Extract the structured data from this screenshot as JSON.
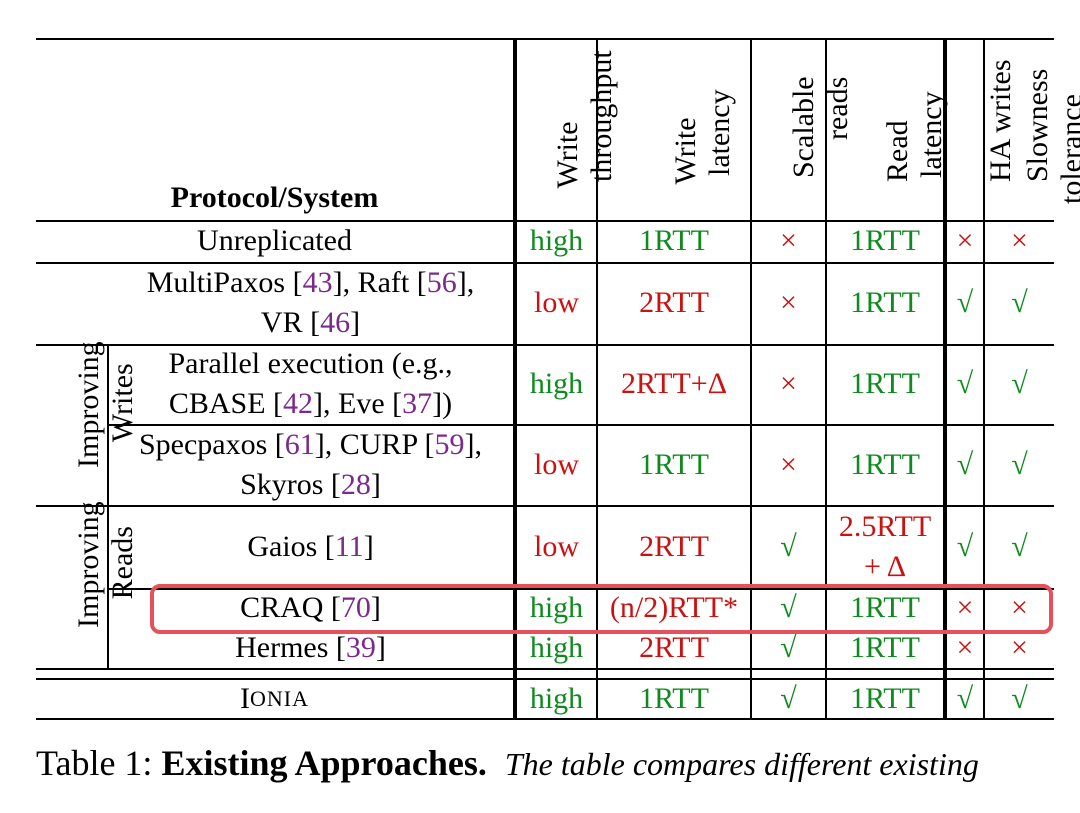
{
  "columns": {
    "protocol": "Protocol/System",
    "write_throughput": [
      "Write",
      "throughput"
    ],
    "write_latency": [
      "Write",
      "latency"
    ],
    "scalable_reads": [
      "Scalable",
      "reads"
    ],
    "read_latency": [
      "Read",
      "latency"
    ],
    "ha_writes": "HA writes",
    "slowness_tolerance": [
      "Slowness",
      "tolerance"
    ]
  },
  "groups": {
    "improving_writes": [
      "Improving",
      "Writes"
    ],
    "improving_reads": [
      "Improving",
      "Reads"
    ]
  },
  "marks": {
    "yes": "√",
    "no": "×"
  },
  "rows": {
    "unreplicated": {
      "name": "Unreplicated",
      "wt": "high",
      "wl": "1RTT",
      "rl": "1RTT"
    },
    "multipaxos": {
      "name1": "MultiPaxos [",
      "cite1": "43",
      "name2": "], Raft [",
      "cite2": "56",
      "name3": "],",
      "name4": "VR [",
      "cite3": "46",
      "name5": "]",
      "wt": "low",
      "wl": "2RTT",
      "rl": "1RTT"
    },
    "parallel": {
      "name1": "Parallel execution (e.g.,",
      "name2": "CBASE [",
      "cite1": "42",
      "name3": "], Eve [",
      "cite2": "37",
      "name4": "])",
      "wt": "high",
      "wl": "2RTT+Δ",
      "rl": "1RTT"
    },
    "specpaxos": {
      "name1": "Specpaxos [",
      "cite1": "61",
      "name2": "], CURP [",
      "cite2": "59",
      "name3": "],",
      "name4": "Skyros [",
      "cite3": "28",
      "name5": "]",
      "wt": "low",
      "wl": "1RTT",
      "rl": "1RTT"
    },
    "gaios": {
      "name1": "Gaios [",
      "cite1": "11",
      "name2": "]",
      "wt": "low",
      "wl": "2RTT",
      "rl1": "2.5RTT",
      "rl2": "+ Δ"
    },
    "craq": {
      "name1": "CRAQ [",
      "cite1": "70",
      "name2": "]",
      "wt": "high",
      "wl": "(n/2)RTT*",
      "rl": "1RTT"
    },
    "hermes": {
      "name1": "Hermes [",
      "cite1": "39",
      "name2": "]",
      "wt": "high",
      "wl": "2RTT",
      "rl": "1RTT"
    },
    "ionia": {
      "name_big": "I",
      "name_small": "ONIA",
      "wt": "high",
      "wl": "1RTT",
      "rl": "1RTT"
    }
  },
  "caption": {
    "label": "Table 1: ",
    "title": "Existing Approaches.",
    "text": "The table compares different existing"
  }
}
